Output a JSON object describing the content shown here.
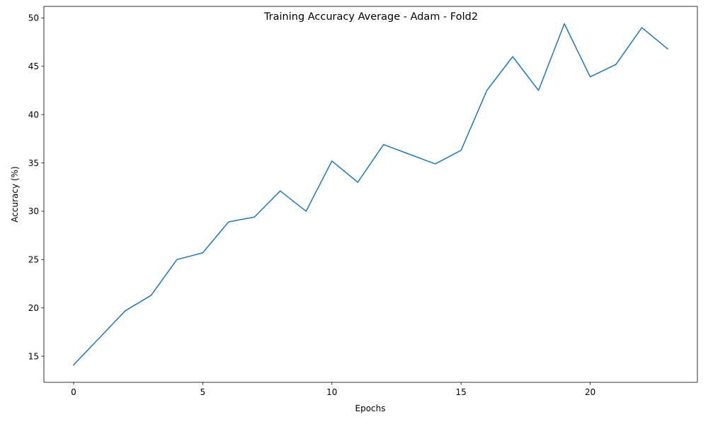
{
  "chart_data": {
    "type": "line",
    "title": "Training Accuracy Average - Adam - Fold2",
    "xlabel": "Epochs",
    "ylabel": "Accuracy (%)",
    "xlim": [
      -1.15,
      24.15
    ],
    "ylim": [
      12.3,
      51.2
    ],
    "xticks": [
      0,
      5,
      10,
      15,
      20
    ],
    "yticks": [
      15,
      20,
      25,
      30,
      35,
      40,
      45,
      50
    ],
    "grid": false,
    "legend": "none",
    "color": "#1f77b4",
    "series": [
      {
        "x": [
          0,
          1,
          2,
          3,
          4,
          5,
          6,
          7,
          8,
          9,
          10,
          11,
          12,
          13,
          14,
          15,
          16,
          17,
          18,
          19,
          20,
          21,
          22,
          23
        ],
        "values": [
          14.1,
          16.9,
          19.7,
          21.3,
          25.0,
          25.7,
          28.9,
          29.4,
          32.1,
          30.0,
          35.2,
          33.0,
          36.9,
          35.9,
          34.9,
          36.3,
          42.5,
          46.0,
          42.5,
          49.4,
          43.9,
          45.2,
          49.0,
          46.8
        ]
      }
    ]
  }
}
